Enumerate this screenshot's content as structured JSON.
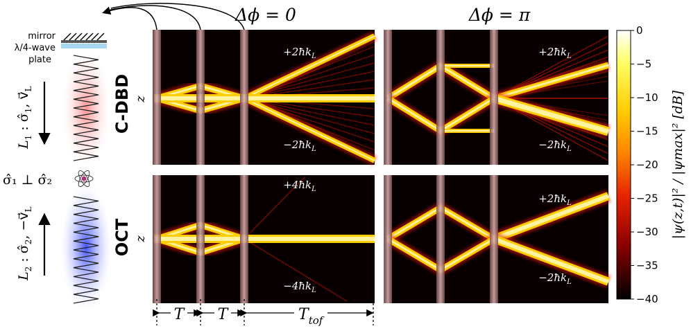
{
  "colors": {
    "panel_bg": "#080000",
    "beam_core": "#fff3a0",
    "beam_mid": "#ffcc00",
    "beam_edge": "#e01a00",
    "pulse_bar": "#b88c8c",
    "spring_L1": "#ff9a9a",
    "spring_L2": "#5a6cff",
    "waveplate": "#a8d8f0"
  },
  "columns": {
    "left": "Δϕ = 0",
    "right": "Δϕ = π"
  },
  "rows": {
    "top": "C-DBD",
    "bottom": "OCT",
    "axis": "z"
  },
  "panels": {
    "cdbd_zero": {
      "upper": "+2ħk",
      "lower": "−2ħk",
      "sub": "L"
    },
    "cdbd_pi": {
      "upper": "+2ħk",
      "lower": "−2ħk",
      "sub": "L"
    },
    "oct_zero": {
      "upper": "+4ħk",
      "lower": "−4ħk",
      "sub": "L"
    },
    "oct_pi": {
      "upper": "+2ħk",
      "lower": "−2ħk",
      "sub": "L"
    }
  },
  "apparatus": {
    "mirror": "mirror",
    "waveplate_line1": "λ/4-wave",
    "waveplate_line2": "plate",
    "beam1": "L",
    "beam1_sub": "1",
    "beam1_rest": " : σ̂",
    "beam1_rest2": "1",
    "beam1_v": ", v⃗",
    "beam1_vsub": "L",
    "beam2": "L",
    "beam2_sub": "2",
    "beam2_rest": " : σ̂",
    "beam2_rest2": "2",
    "beam2_v": ", −v⃗",
    "beam2_vsub": "L",
    "polarization": "σ̂₁ ⊥ σ̂₂"
  },
  "timeline": {
    "T1": "T",
    "T2": "T",
    "Ttof": "T",
    "Ttof_sub": "tof"
  },
  "colorbar": {
    "label": "|ψ(z,t)|² / |ψmax|²  [dB]",
    "ticks": [
      "0",
      "−5",
      "−10",
      "−15",
      "−20",
      "−25",
      "−30",
      "−35",
      "−40"
    ]
  }
}
